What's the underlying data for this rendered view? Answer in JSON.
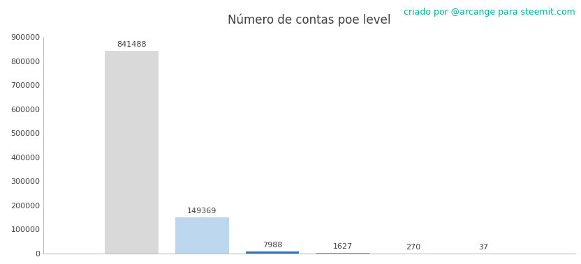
{
  "chart_data": {
    "type": "bar",
    "title": "Número de contas poe level",
    "annotation": "criado por @arcange para steemit.com",
    "categories": [
      null,
      null,
      null,
      null,
      null,
      null
    ],
    "values": [
      841488,
      149369,
      7988,
      1627,
      270,
      37
    ],
    "colors": [
      "#d9d9d9",
      "#bdd7ee",
      "#2e75b6",
      "#70ad47",
      "#c00000",
      "#7030a0"
    ],
    "ylim": [
      0,
      900000
    ],
    "yticks": [
      0,
      100000,
      200000,
      300000,
      400000,
      500000,
      600000,
      700000,
      800000,
      900000
    ],
    "grid": false,
    "data_labels": true,
    "tick_labels": "y"
  }
}
